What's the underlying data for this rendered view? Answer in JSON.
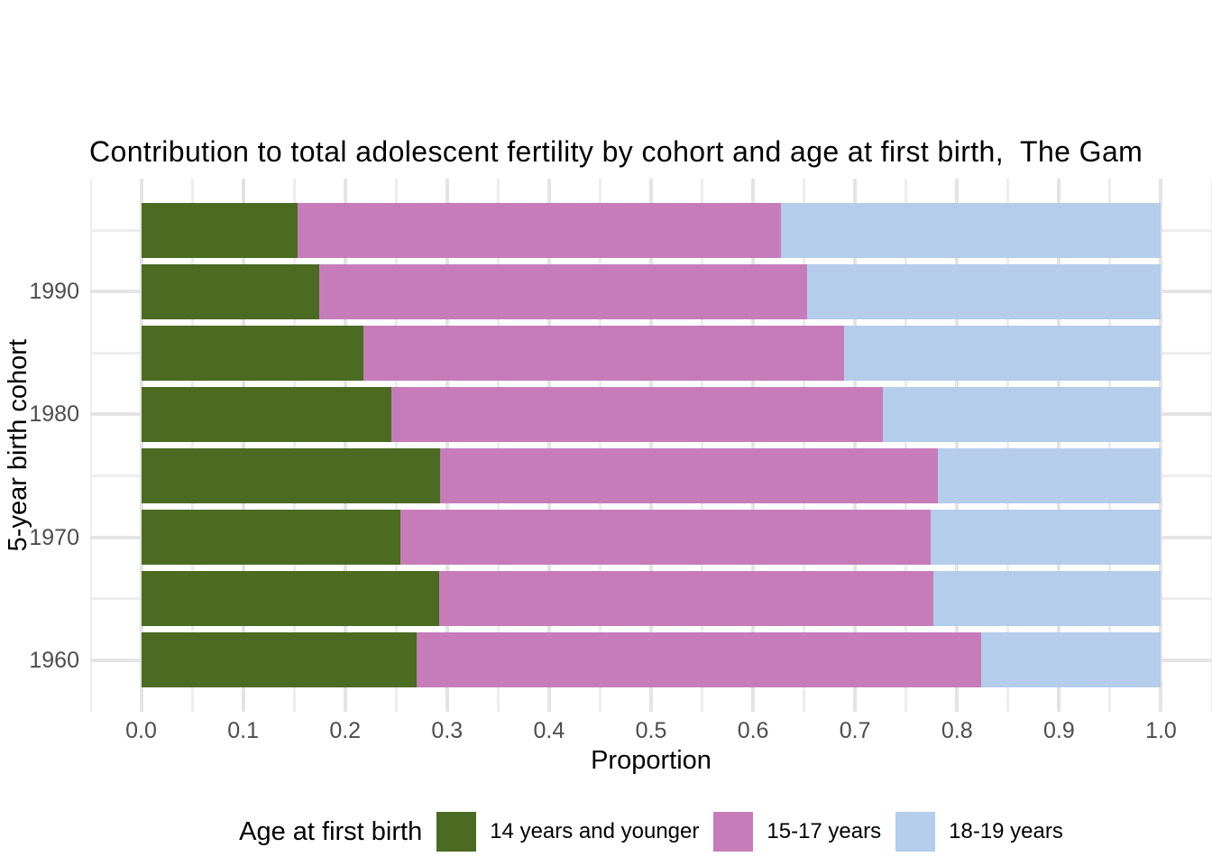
{
  "page": {
    "background": "#ffffff"
  },
  "chart_data": {
    "type": "bar",
    "orientation": "horizontal",
    "stacked": true,
    "title": "Contribution to total adolescent fertility by cohort and age at first birth,  The Gam",
    "xlabel": "Proportion",
    "ylabel": "5-year birth cohort",
    "legend_title": "Age at first birth",
    "legend_position": "bottom",
    "grid": true,
    "categories": [
      1995,
      1990,
      1985,
      1980,
      1975,
      1970,
      1965,
      1960
    ],
    "series": [
      {
        "name": "14 years and younger",
        "color": "#4c6b22",
        "values": [
          0.153,
          0.175,
          0.218,
          0.245,
          0.293,
          0.254,
          0.292,
          0.27
        ]
      },
      {
        "name": "15-17 years",
        "color": "#c77cba",
        "values": [
          0.474,
          0.478,
          0.471,
          0.482,
          0.488,
          0.52,
          0.485,
          0.554
        ]
      },
      {
        "name": "18-19 years",
        "color": "#b3cdeb",
        "values": [
          0.373,
          0.347,
          0.311,
          0.273,
          0.219,
          0.226,
          0.223,
          0.176
        ]
      }
    ],
    "xlim": [
      -0.05,
      1.05
    ],
    "ylim": [
      1955.775,
      1999.225
    ],
    "bar_width_years": 4.5,
    "x_ticks": {
      "values": [
        0.0,
        0.1,
        0.2,
        0.3,
        0.4,
        0.5,
        0.6,
        0.7,
        0.8,
        0.9,
        1.0
      ],
      "labels": [
        "0.0",
        "0.1",
        "0.2",
        "0.3",
        "0.4",
        "0.5",
        "0.6",
        "0.7",
        "0.8",
        "0.9",
        "1.0"
      ]
    },
    "y_ticks": {
      "values": [
        1990,
        1980,
        1970,
        1960
      ],
      "labels": [
        "1990",
        "1980",
        "1970",
        "1960"
      ]
    },
    "x_minor": [
      -0.05,
      0.05,
      0.15,
      0.25,
      0.35,
      0.45,
      0.55,
      0.65,
      0.75,
      0.85,
      0.95,
      1.05
    ],
    "y_minor": [
      1995,
      1985,
      1975,
      1965
    ],
    "colors": {
      "grid_major": "#e4e4e4",
      "grid_minor": "#ededed",
      "axis_text": "#4d4d4d",
      "text": "#000000",
      "panel_background": "#ffffff"
    }
  }
}
